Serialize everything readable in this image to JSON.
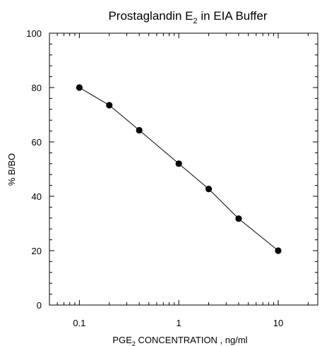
{
  "chart_data": {
    "type": "line",
    "title": {
      "text": "Prostaglandin E",
      "sub": "2",
      "rest": " in EIA Buffer"
    },
    "xlabel": {
      "text": "PGE",
      "sub": "2",
      "rest": " CONCENTRATION , ng/ml"
    },
    "ylabel": "% B/BO",
    "x_scale": "log",
    "xlim": [
      0.05,
      25
    ],
    "ylim": [
      0,
      100
    ],
    "x_ticks": [
      0.1,
      1,
      10
    ],
    "x_tick_labels": [
      "0.1",
      "1",
      "10"
    ],
    "y_ticks": [
      0,
      20,
      40,
      60,
      80,
      100
    ],
    "y_tick_labels": [
      "0",
      "20",
      "40",
      "60",
      "80",
      "100"
    ],
    "grid": false,
    "series": [
      {
        "x": [
          0.1,
          0.2,
          0.4,
          1,
          2,
          4,
          10
        ],
        "y": [
          80,
          73.5,
          64.3,
          52,
          42.7,
          31.8,
          20
        ]
      }
    ],
    "line_color": "#000000",
    "marker_color": "#000000"
  }
}
